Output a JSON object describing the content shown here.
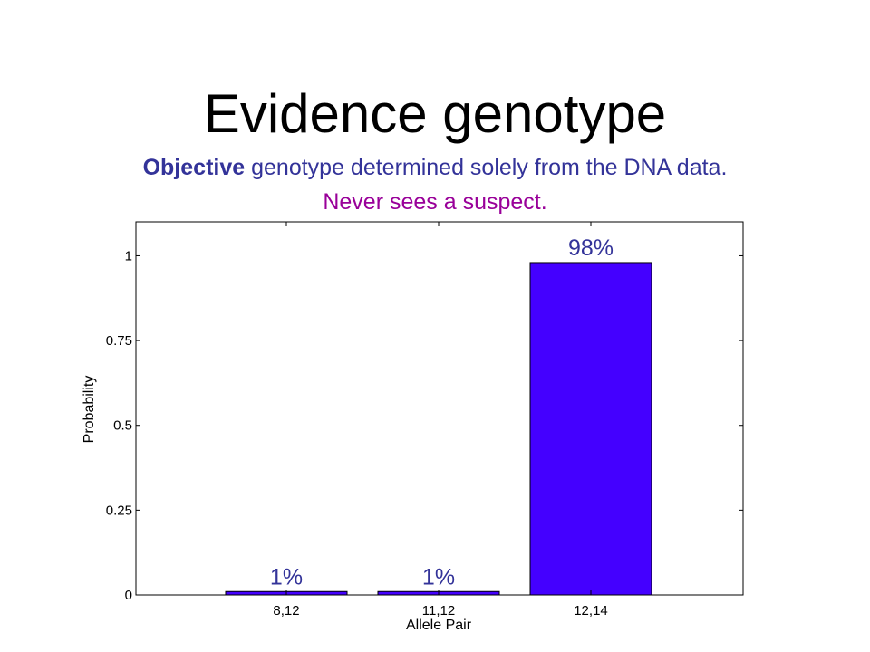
{
  "slide": {
    "title": "Evidence genotype",
    "subtitle_emphasis": "Objective",
    "subtitle_rest": " genotype determined solely from the DNA data.",
    "subtitle_line2": "Never sees a suspect."
  },
  "colors": {
    "bar_fill": "#4400ff",
    "data_label": "#333399",
    "subtitle_line1": "#333399",
    "subtitle_line2": "#990099"
  },
  "chart_data": {
    "type": "bar",
    "title": "",
    "xlabel": "Allele Pair",
    "ylabel": "Probability",
    "categories": [
      "8,12",
      "11,12",
      "12,14"
    ],
    "values": [
      0.01,
      0.01,
      0.98
    ],
    "data_labels": [
      "1%",
      "1%",
      "98%"
    ],
    "ylim": [
      0,
      1.1
    ],
    "yticks": [
      0,
      0.25,
      0.5,
      0.75,
      1
    ],
    "ytick_labels": [
      "0",
      "0.25",
      "0.5",
      "0.75",
      "1"
    ],
    "grid": false,
    "legend": "none"
  }
}
